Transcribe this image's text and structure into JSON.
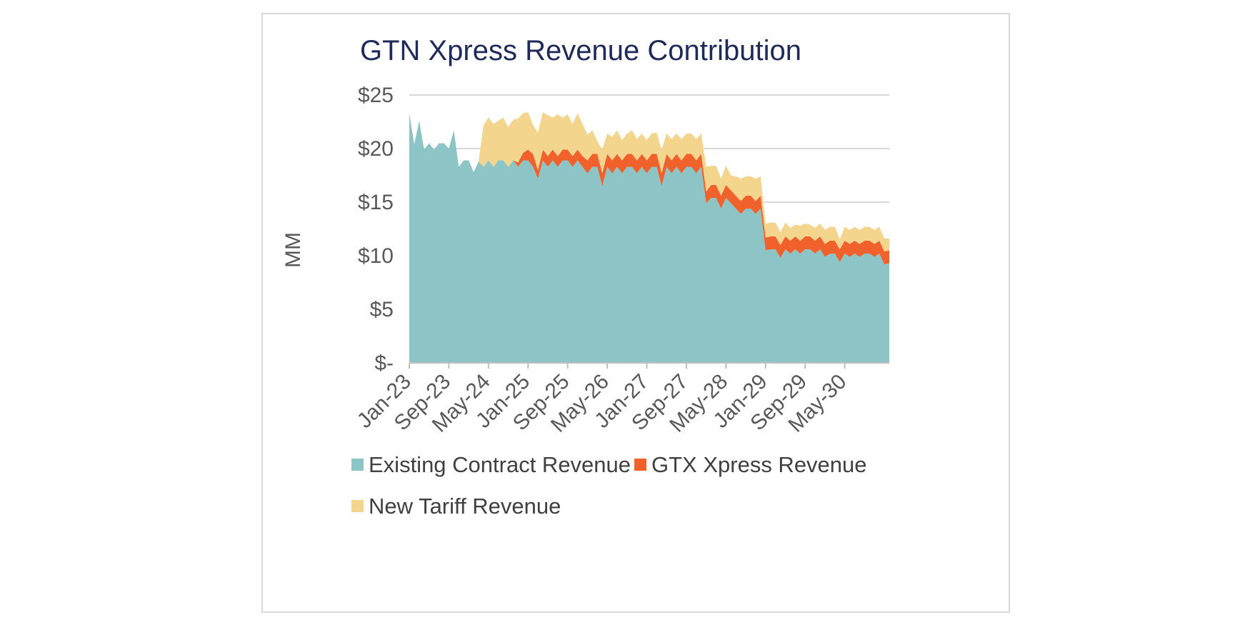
{
  "chart_data": {
    "type": "area",
    "stacked": true,
    "title": "GTN Xpress Revenue Contribution",
    "xlabel": "",
    "ylabel": "MM",
    "ylim": [
      0,
      25
    ],
    "yticks": [
      25,
      20,
      15,
      10,
      5,
      0
    ],
    "ytick_labels": [
      "$25",
      "$20",
      "$15",
      "$10",
      "$5",
      "$-"
    ],
    "x_start": "Jan-23",
    "x_end": "Dec-30",
    "xtick_labels": [
      "Jan-23",
      "Sep-23",
      "May-24",
      "Jan-25",
      "Sep-25",
      "May-26",
      "Jan-27",
      "Sep-27",
      "May-28",
      "Jan-29",
      "Sep-29",
      "May-30"
    ],
    "legend_position": "bottom",
    "grid": true,
    "series": [
      {
        "name": "Existing Contract Revenue",
        "color": "#8dc4c6",
        "values": [
          23.3,
          20.4,
          22.6,
          19.9,
          20.5,
          19.9,
          20.5,
          20.5,
          20.0,
          21.7,
          18.3,
          18.9,
          18.9,
          17.8,
          18.8,
          18.3,
          18.9,
          18.3,
          18.9,
          18.9,
          18.3,
          18.9,
          18.3,
          18.9,
          18.9,
          18.3,
          17.2,
          18.9,
          18.3,
          18.9,
          18.3,
          18.9,
          18.9,
          18.3,
          18.9,
          18.3,
          17.7,
          18.3,
          18.3,
          16.5,
          18.3,
          17.7,
          18.3,
          17.7,
          18.3,
          18.3,
          17.7,
          18.3,
          17.7,
          18.3,
          18.3,
          16.5,
          18.3,
          17.7,
          18.3,
          17.7,
          18.3,
          18.3,
          17.7,
          18.3,
          14.9,
          15.4,
          15.4,
          14.4,
          15.4,
          14.9,
          14.4,
          13.9,
          14.4,
          14.4,
          13.9,
          14.4,
          10.5,
          10.6,
          10.6,
          9.8,
          10.6,
          10.2,
          10.6,
          10.2,
          10.6,
          10.6,
          10.2,
          10.6,
          9.9,
          10.2,
          10.2,
          9.4,
          10.2,
          9.9,
          10.2,
          9.9,
          10.2,
          10.2,
          9.9,
          10.2,
          9.2,
          9.3
        ]
      },
      {
        "name": "GTX Xpress Revenue",
        "color": "#f0612c",
        "values": [
          0,
          0,
          0,
          0,
          0,
          0,
          0,
          0,
          0,
          0,
          0,
          0,
          0,
          0,
          0,
          0,
          0,
          0,
          0,
          0,
          0,
          0,
          0.4,
          0.7,
          1.0,
          1.2,
          0.8,
          1.0,
          1.0,
          1.0,
          1.0,
          1.0,
          1.0,
          1.0,
          1.0,
          1.0,
          1.2,
          1.2,
          1.2,
          1.2,
          1.2,
          1.2,
          1.2,
          1.2,
          1.2,
          1.2,
          1.2,
          1.2,
          1.2,
          1.2,
          1.2,
          1.2,
          1.2,
          1.2,
          1.2,
          1.2,
          1.2,
          1.2,
          1.2,
          1.2,
          1.1,
          1.2,
          1.2,
          1.2,
          1.2,
          1.2,
          1.2,
          1.2,
          1.2,
          1.2,
          1.2,
          1.2,
          1.2,
          1.2,
          1.2,
          1.2,
          1.2,
          1.2,
          1.2,
          1.2,
          1.2,
          1.2,
          1.2,
          1.2,
          1.2,
          1.2,
          1.2,
          1.2,
          1.2,
          1.2,
          1.2,
          1.2,
          1.2,
          1.2,
          1.2,
          1.2,
          1.2,
          1.2
        ]
      },
      {
        "name": "New Tariff Revenue",
        "color": "#f4d58d",
        "values": [
          0,
          0,
          0,
          0,
          0,
          0,
          0,
          0,
          0,
          0,
          0,
          0,
          0,
          0,
          0,
          3.9,
          4.0,
          4.0,
          3.7,
          4.0,
          3.7,
          3.8,
          4.1,
          3.7,
          3.5,
          2.7,
          3.5,
          3.5,
          3.8,
          3.0,
          3.9,
          3.0,
          3.3,
          3.0,
          3.4,
          3.0,
          2.4,
          2.2,
          1.2,
          2.2,
          1.9,
          2.2,
          2.2,
          1.9,
          1.9,
          2.2,
          2.0,
          1.9,
          1.9,
          1.9,
          2.0,
          2.2,
          1.9,
          2.0,
          1.9,
          2.0,
          1.9,
          1.9,
          2.0,
          1.9,
          2.3,
          1.8,
          1.8,
          1.6,
          1.8,
          1.4,
          1.8,
          2.1,
          1.8,
          1.8,
          2.1,
          1.8,
          1.3,
          1.3,
          1.3,
          1.2,
          1.3,
          1.2,
          1.1,
          1.4,
          1.2,
          1.1,
          1.2,
          1.2,
          1.3,
          1.3,
          1.3,
          0.9,
          1.3,
          1.3,
          1.3,
          1.3,
          1.3,
          1.3,
          1.3,
          1.3,
          1.2,
          1.1
        ]
      }
    ]
  }
}
